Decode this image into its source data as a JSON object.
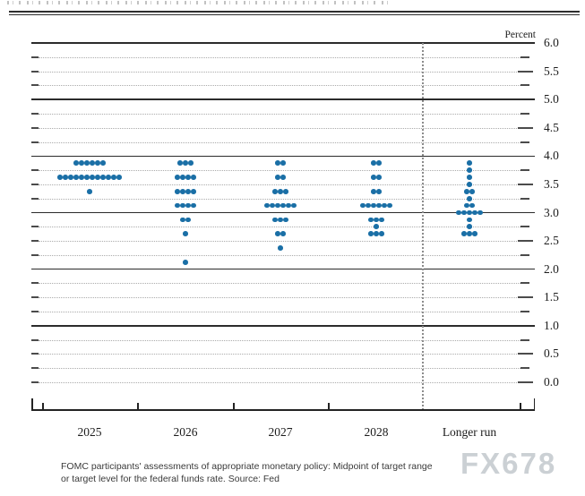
{
  "caption": {
    "line1": "FOMC participants' assessments of appropriate monetary policy: Midpoint of target range",
    "line2": "or target level for the federal funds rate. Source: Fed"
  },
  "watermark": "FX678",
  "chart_data": {
    "type": "scatter",
    "subtype": "fomc-dot-plot",
    "unit_label": "Percent",
    "x_categories": [
      "2025",
      "2026",
      "2027",
      "2028",
      "Longer run"
    ],
    "y_axis": {
      "min": 0.0,
      "max": 6.0,
      "label_step": 0.5,
      "labels": [
        "6.0",
        "5.5",
        "5.0",
        "4.5",
        "4.0",
        "3.5",
        "3.0",
        "2.5",
        "2.0",
        "1.5",
        "1.0",
        "0.5",
        "0.0"
      ],
      "solid_gridlines": [
        6.0,
        5.0,
        4.0,
        3.0,
        2.0,
        1.0
      ],
      "dotted_gridline_step": 0.25
    },
    "dot_color": "#1a6fa6",
    "series": [
      {
        "category": "2025",
        "dots": [
          {
            "value": 3.875,
            "count": 6
          },
          {
            "value": 3.625,
            "count": 12
          },
          {
            "value": 3.375,
            "count": 1
          }
        ]
      },
      {
        "category": "2026",
        "dots": [
          {
            "value": 3.875,
            "count": 3
          },
          {
            "value": 3.625,
            "count": 4
          },
          {
            "value": 3.375,
            "count": 4
          },
          {
            "value": 3.125,
            "count": 4
          },
          {
            "value": 2.875,
            "count": 2
          },
          {
            "value": 2.625,
            "count": 1
          },
          {
            "value": 2.125,
            "count": 1
          }
        ]
      },
      {
        "category": "2027",
        "dots": [
          {
            "value": 3.875,
            "count": 2
          },
          {
            "value": 3.625,
            "count": 2
          },
          {
            "value": 3.375,
            "count": 3
          },
          {
            "value": 3.125,
            "count": 6
          },
          {
            "value": 2.875,
            "count": 3
          },
          {
            "value": 2.625,
            "count": 2
          },
          {
            "value": 2.375,
            "count": 1
          }
        ]
      },
      {
        "category": "2028",
        "dots": [
          {
            "value": 3.875,
            "count": 2
          },
          {
            "value": 3.625,
            "count": 2
          },
          {
            "value": 3.375,
            "count": 2
          },
          {
            "value": 3.125,
            "count": 6
          },
          {
            "value": 2.875,
            "count": 3
          },
          {
            "value": 2.75,
            "count": 1
          },
          {
            "value": 2.625,
            "count": 3
          }
        ]
      },
      {
        "category": "Longer run",
        "dots": [
          {
            "value": 3.875,
            "count": 1
          },
          {
            "value": 3.75,
            "count": 1
          },
          {
            "value": 3.625,
            "count": 1
          },
          {
            "value": 3.5,
            "count": 1
          },
          {
            "value": 3.375,
            "count": 2
          },
          {
            "value": 3.25,
            "count": 1
          },
          {
            "value": 3.125,
            "count": 2
          },
          {
            "value": 3.0,
            "count": 5
          },
          {
            "value": 2.875,
            "count": 1
          },
          {
            "value": 2.75,
            "count": 1
          },
          {
            "value": 2.625,
            "count": 3
          }
        ]
      }
    ]
  }
}
